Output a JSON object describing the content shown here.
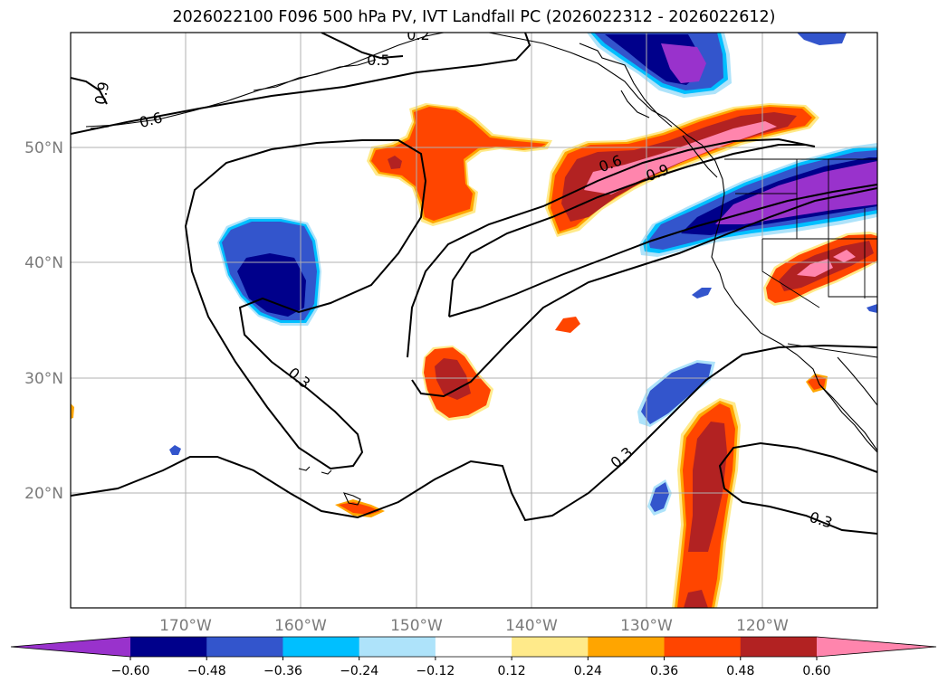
{
  "title": "2026022100 F096 500 hPa PV, IVT Landfall PC (2026022312 - 2026022612)",
  "map": {
    "lon_range": [
      -180,
      -110
    ],
    "lat_range": [
      10,
      60
    ],
    "lat_labels": [
      "50°N",
      "40°N",
      "30°N",
      "20°N"
    ],
    "lon_labels": [
      "170°W",
      "160°W",
      "150°W",
      "140°W",
      "130°W",
      "120°W"
    ],
    "contour_labels": [
      "0.9",
      "0.6",
      "0.3",
      "0.6",
      "0.9",
      "0.3",
      "0.3",
      "0.2",
      "0.5"
    ],
    "colors": {
      "purple": "#9932cc",
      "navy": "#00008b",
      "royal": "#3355cc",
      "deepsky": "#00bfff",
      "lightsky": "#aee3fa",
      "lightyellow": "#ffea8a",
      "orange": "#ffa500",
      "orangered": "#ff4500",
      "firebrick": "#b22222",
      "pink": "#ff85ad"
    }
  },
  "colorbar": {
    "ticks": [
      "−0.60",
      "−0.48",
      "−0.36",
      "−0.24",
      "−0.12",
      "0.12",
      "0.24",
      "0.36",
      "0.48",
      "0.60"
    ],
    "colors": [
      "#9932cc",
      "#00008b",
      "#3355cc",
      "#00bfff",
      "#aee3fa",
      "#ffffff",
      "#ffea8a",
      "#ffa500",
      "#ff4500",
      "#b22222",
      "#ff85ad"
    ]
  }
}
